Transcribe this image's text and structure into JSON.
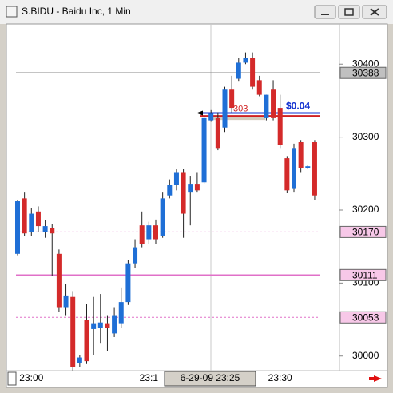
{
  "chart_data": {
    "type": "candlestick",
    "title": "S.BIDU - Baidu Inc, 1 Min",
    "categories": [
      null,
      null,
      "23:00",
      null,
      null,
      null,
      null,
      null,
      null,
      null,
      null,
      null,
      null,
      null,
      null,
      null,
      null,
      null,
      null,
      "23:1",
      null,
      null,
      null,
      null,
      null,
      null,
      null,
      null,
      null,
      null,
      null,
      null,
      null,
      null,
      null,
      null,
      null,
      null,
      "23:30",
      null,
      null,
      null,
      null,
      null
    ],
    "open": [
      301.4,
      302.16,
      301.7,
      301.98,
      301.7,
      301.75,
      301.4,
      300.67,
      300.81,
      299.9,
      300.5,
      300.37,
      300.39,
      300.45,
      300.31,
      300.45,
      300.74,
      301.27,
      301.79,
      301.6,
      301.79,
      301.65,
      302.2,
      302.34,
      302.52,
      302.25,
      302.36,
      302.38,
      303.23,
      303.26,
      303.13,
      303.65,
      303.8,
      304.02,
      304.09,
      303.78,
      303.26,
      303.65,
      303.4,
      302.71,
      302.3,
      302.93,
      302.58,
      302.93
    ],
    "high": [
      302.14,
      302.25,
      302.03,
      302.05,
      301.86,
      301.81,
      301.46,
      300.99,
      300.89,
      300.01,
      300.72,
      300.81,
      300.85,
      300.56,
      300.67,
      300.94,
      301.32,
      301.6,
      301.98,
      301.84,
      301.87,
      302.25,
      302.42,
      302.56,
      302.56,
      302.47,
      302.52,
      303.29,
      303.37,
      303.34,
      303.69,
      303.84,
      304.09,
      304.16,
      304.16,
      303.84,
      303.58,
      303.78,
      303.58,
      302.74,
      302.91,
      302.96,
      302.62,
      302.96
    ],
    "low": [
      301.38,
      301.64,
      301.64,
      301.7,
      301.62,
      301.1,
      300.61,
      300.56,
      299.8,
      299.85,
      299.89,
      300.01,
      300.17,
      300.07,
      300.26,
      300.39,
      300.7,
      301.21,
      301.49,
      301.54,
      301.54,
      301.62,
      302.16,
      302.27,
      301.62,
      301.79,
      302.25,
      302.36,
      303.21,
      302.82,
      303.07,
      303.34,
      303.76,
      304.0,
      303.65,
      303.56,
      303.23,
      303.23,
      302.85,
      302.23,
      302.25,
      302.52,
      302.56,
      302.14
    ],
    "close": [
      302.12,
      301.68,
      301.95,
      301.78,
      301.78,
      301.68,
      300.67,
      300.83,
      299.85,
      299.98,
      299.93,
      300.45,
      300.46,
      300.39,
      300.56,
      300.74,
      301.27,
      301.49,
      301.54,
      301.79,
      301.6,
      302.16,
      302.34,
      302.52,
      301.95,
      302.36,
      302.27,
      303.26,
      303.32,
      302.85,
      303.65,
      303.4,
      304.02,
      304.09,
      303.69,
      303.58,
      303.58,
      303.26,
      302.89,
      302.27,
      302.85,
      302.58,
      302.6,
      302.2
    ],
    "up_color": "#1f6fd6",
    "down_color": "#d42a2a",
    "ylim": [
      299.8,
      304.55
    ],
    "yticks": [
      {
        "value": 300.0,
        "label": "30000"
      },
      {
        "value": 301.0,
        "label": "30100"
      },
      {
        "value": 302.0,
        "label": "30200"
      },
      {
        "value": 303.0,
        "label": "30300"
      },
      {
        "value": 304.0,
        "label": "30400"
      }
    ],
    "price_lines": [
      {
        "value": 303.88,
        "label": "30388",
        "color": "#888888",
        "style": "solid"
      },
      {
        "value": 301.7,
        "label": "30170",
        "color": "#e070c8",
        "style": "dashed"
      },
      {
        "value": 301.11,
        "label": "30111",
        "color": "#e070c8",
        "style": "solid"
      },
      {
        "value": 300.53,
        "label": "30053",
        "color": "#e070c8",
        "style": "dashed"
      }
    ],
    "order_lines": [
      {
        "value": 303.33,
        "color": "#1030d0"
      },
      {
        "value": 303.29,
        "color": "#d02020"
      }
    ],
    "spread_label": "$0.04",
    "annotation": "303",
    "cursor_label": "6-29-09 23:25"
  }
}
